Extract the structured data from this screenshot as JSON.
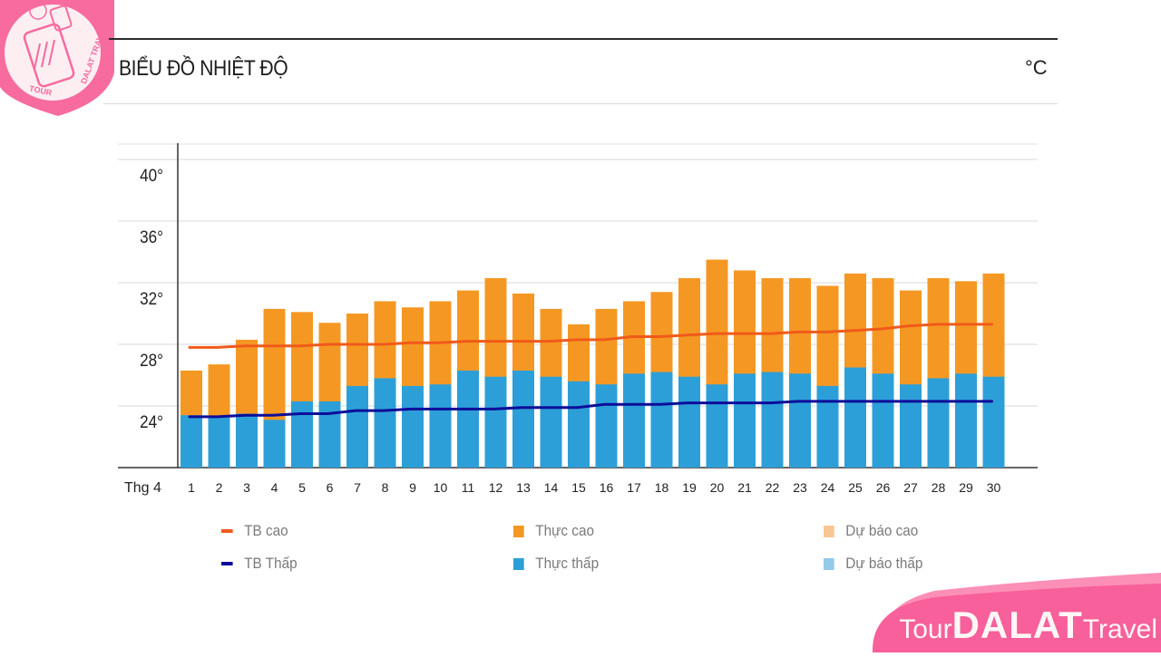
{
  "header": {
    "title": "BIỂU ĐỒ NHIỆT ĐỘ",
    "unit": "°C"
  },
  "brand": {
    "logo_text": "TOUR DALAT TRAVEL",
    "part1": "Tour",
    "part2": "DALAT",
    "part3": "Travel",
    "color": "#f65e96"
  },
  "chart_data": {
    "type": "bar",
    "title": "BIỂU ĐỒ NHIỆT ĐỘ",
    "unit": "°C",
    "xlabel": "Thg 4",
    "ylabel": "",
    "ylim": [
      20,
      41
    ],
    "yticks": [
      24,
      28,
      32,
      36,
      40
    ],
    "ytick_labels": [
      "24°",
      "28°",
      "32°",
      "36°",
      "40°"
    ],
    "grid": true,
    "legend_position": "bottom",
    "categories": [
      "1",
      "2",
      "3",
      "4",
      "5",
      "6",
      "7",
      "8",
      "9",
      "10",
      "11",
      "12",
      "13",
      "14",
      "15",
      "16",
      "17",
      "18",
      "19",
      "20",
      "21",
      "22",
      "23",
      "24",
      "25",
      "26",
      "27",
      "28",
      "29",
      "30"
    ],
    "series": [
      {
        "name": "Thực cao",
        "type": "bar",
        "color": "#f59823",
        "values": [
          26.3,
          26.7,
          28.3,
          30.3,
          30.1,
          29.4,
          30.0,
          30.8,
          30.4,
          30.8,
          31.5,
          32.3,
          31.3,
          30.3,
          29.3,
          30.3,
          30.8,
          31.4,
          32.3,
          33.5,
          32.8,
          32.3,
          32.3,
          31.8,
          32.6,
          32.3,
          31.5,
          32.3,
          32.1,
          32.6
        ]
      },
      {
        "name": "Thực thấp",
        "type": "bar",
        "color": "#2d9fd8",
        "values": [
          23.4,
          23.3,
          23.5,
          23.1,
          24.3,
          24.3,
          25.3,
          25.8,
          25.3,
          25.4,
          26.3,
          25.9,
          26.3,
          25.9,
          25.6,
          25.4,
          26.1,
          26.2,
          25.9,
          25.4,
          26.1,
          26.2,
          26.1,
          25.3,
          26.5,
          26.1,
          25.4,
          25.8,
          26.1,
          25.9
        ]
      },
      {
        "name": "TB cao",
        "type": "line",
        "color": "#f05a1a",
        "values": [
          27.8,
          27.8,
          27.9,
          27.9,
          27.9,
          28.0,
          28.0,
          28.0,
          28.1,
          28.1,
          28.2,
          28.2,
          28.2,
          28.2,
          28.3,
          28.3,
          28.5,
          28.5,
          28.6,
          28.7,
          28.7,
          28.7,
          28.8,
          28.8,
          28.9,
          29.0,
          29.2,
          29.3,
          29.3,
          29.3
        ]
      },
      {
        "name": "TB Thấp",
        "type": "line",
        "color": "#0d0d99",
        "values": [
          23.3,
          23.3,
          23.4,
          23.4,
          23.5,
          23.5,
          23.7,
          23.7,
          23.8,
          23.8,
          23.8,
          23.8,
          23.9,
          23.9,
          23.9,
          24.1,
          24.1,
          24.1,
          24.2,
          24.2,
          24.2,
          24.2,
          24.3,
          24.3,
          24.3,
          24.3,
          24.3,
          24.3,
          24.3,
          24.3
        ]
      },
      {
        "name": "Dự báo cao",
        "type": "bar",
        "color": "#f9c794",
        "values": []
      },
      {
        "name": "Dự báo thấp",
        "type": "bar",
        "color": "#94cbea",
        "values": []
      }
    ]
  },
  "legend": [
    {
      "label": "TB cao",
      "kind": "line",
      "color": "#f05a1a"
    },
    {
      "label": "Thực cao",
      "kind": "box",
      "color": "#f59823"
    },
    {
      "label": "Dự báo cao",
      "kind": "box",
      "color": "#f9c794"
    },
    {
      "label": "TB Thấp",
      "kind": "line",
      "color": "#0d0d99"
    },
    {
      "label": "Thực thấp",
      "kind": "box",
      "color": "#2d9fd8"
    },
    {
      "label": "Dự báo thấp",
      "kind": "box",
      "color": "#94cbea"
    }
  ]
}
